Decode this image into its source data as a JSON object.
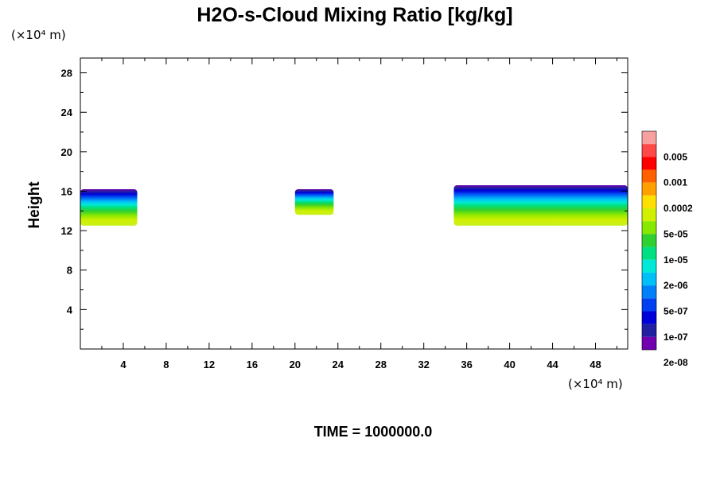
{
  "chart_data": {
    "type": "heatmap",
    "title": "H2O-s-Cloud Mixing Ratio [kg/kg]",
    "xunit": "(×10⁴ m)",
    "yunit": "(×10⁴ m)",
    "ylabel": "Height",
    "xlabel": "",
    "xlim": [
      0,
      51
    ],
    "ylim": [
      0,
      29.5
    ],
    "xticks": [
      "4",
      "8",
      "12",
      "16",
      "20",
      "24",
      "28",
      "32",
      "36",
      "40",
      "44",
      "48"
    ],
    "yticks": [
      "4",
      "8",
      "12",
      "16",
      "20",
      "24",
      "28"
    ],
    "footer": "TIME = 1000000.0",
    "colorbar": {
      "labels": [
        "0.005",
        "0.001",
        "0.0002",
        "5e-05",
        "1e-05",
        "2e-06",
        "5e-07",
        "1e-07",
        "2e-08"
      ],
      "colors": [
        "#f7a0a0",
        "#ff4848",
        "#ff0000",
        "#ff6000",
        "#ffa000",
        "#ffe000",
        "#d0f000",
        "#88e800",
        "#30d030",
        "#00e080",
        "#00e8d8",
        "#00c0f8",
        "#0080f8",
        "#0040f0",
        "#0000d8",
        "#2020a0",
        "#7000b0"
      ]
    },
    "regions": [
      {
        "name": "cloud-west",
        "x": [
          0,
          5.3
        ],
        "y": [
          12.5,
          16.2
        ]
      },
      {
        "name": "cloud-middle",
        "x": [
          20,
          23.6
        ],
        "y": [
          13.6,
          16.2
        ]
      },
      {
        "name": "cloud-east",
        "x": [
          34.8,
          51
        ],
        "y": [
          12.5,
          16.6
        ]
      }
    ]
  }
}
